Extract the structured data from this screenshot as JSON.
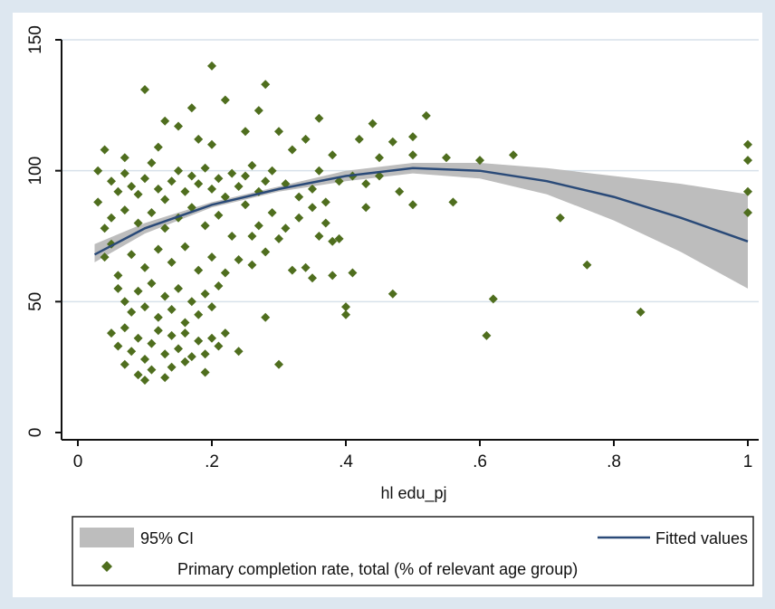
{
  "chart_data": {
    "type": "scatter",
    "xlabel": "hl edu_pj",
    "ylabel": "",
    "xlim": [
      0,
      1
    ],
    "ylim": [
      0,
      150
    ],
    "x_ticks": [
      0,
      0.2,
      0.4,
      0.6,
      0.8,
      1
    ],
    "x_tick_labels": [
      "0",
      ".2",
      ".4",
      ".6",
      ".8",
      "1"
    ],
    "y_ticks": [
      0,
      50,
      100,
      150
    ],
    "y_tick_labels": [
      "0",
      "50",
      "100",
      "150"
    ],
    "grid": true,
    "legend_position": "bottom",
    "legend": {
      "ci_label": "95% CI",
      "fitted_label": "Fitted values",
      "scatter_label": "Primary completion rate, total (% of relevant age group)"
    },
    "colors": {
      "points": "#4f6e1e",
      "fit_line": "#2a4a78",
      "ci_band": "#bdbdbd",
      "background": "#ffffff",
      "outer_frame": "#dde7f0"
    },
    "fitted_line": {
      "x": [
        0.025,
        0.1,
        0.2,
        0.3,
        0.4,
        0.5,
        0.6,
        0.7,
        0.8,
        0.9,
        1.0
      ],
      "y": [
        68,
        78,
        87,
        93,
        98,
        101,
        100,
        96,
        90,
        82,
        73
      ]
    },
    "ci_band": {
      "x": [
        0.025,
        0.1,
        0.2,
        0.3,
        0.4,
        0.5,
        0.6,
        0.7,
        0.8,
        0.9,
        1.0
      ],
      "lower": [
        65,
        76,
        86,
        92,
        96,
        99,
        97,
        91,
        81,
        69,
        55
      ],
      "upper": [
        72,
        80,
        88,
        94,
        100,
        103,
        103,
        101,
        98,
        95,
        91
      ]
    },
    "series": [
      {
        "name": "Primary completion rate, total (% of relevant age group)",
        "points": [
          [
            0.1,
            131
          ],
          [
            0.2,
            140
          ],
          [
            0.22,
            127
          ],
          [
            0.28,
            133
          ],
          [
            0.17,
            124
          ],
          [
            0.27,
            123
          ],
          [
            0.13,
            119
          ],
          [
            0.18,
            112
          ],
          [
            0.52,
            121
          ],
          [
            0.36,
            120
          ],
          [
            0.44,
            118
          ],
          [
            0.42,
            112
          ],
          [
            0.47,
            111
          ],
          [
            0.5,
            113
          ],
          [
            0.25,
            115
          ],
          [
            0.3,
            115
          ],
          [
            0.34,
            112
          ],
          [
            0.15,
            117
          ],
          [
            0.04,
            108
          ],
          [
            0.07,
            105
          ],
          [
            0.12,
            109
          ],
          [
            0.2,
            110
          ],
          [
            0.32,
            108
          ],
          [
            0.38,
            106
          ],
          [
            0.45,
            105
          ],
          [
            0.5,
            106
          ],
          [
            0.55,
            105
          ],
          [
            0.6,
            104
          ],
          [
            0.65,
            106
          ],
          [
            1.0,
            110
          ],
          [
            1.0,
            104
          ],
          [
            1.0,
            92
          ],
          [
            1.0,
            84
          ],
          [
            0.03,
            100
          ],
          [
            0.05,
            96
          ],
          [
            0.06,
            92
          ],
          [
            0.07,
            99
          ],
          [
            0.08,
            94
          ],
          [
            0.09,
            91
          ],
          [
            0.1,
            97
          ],
          [
            0.11,
            103
          ],
          [
            0.12,
            93
          ],
          [
            0.13,
            89
          ],
          [
            0.14,
            96
          ],
          [
            0.15,
            100
          ],
          [
            0.16,
            92
          ],
          [
            0.17,
            98
          ],
          [
            0.18,
            95
          ],
          [
            0.19,
            101
          ],
          [
            0.2,
            93
          ],
          [
            0.21,
            97
          ],
          [
            0.22,
            90
          ],
          [
            0.23,
            99
          ],
          [
            0.24,
            94
          ],
          [
            0.25,
            98
          ],
          [
            0.26,
            102
          ],
          [
            0.27,
            92
          ],
          [
            0.28,
            96
          ],
          [
            0.29,
            100
          ],
          [
            0.31,
            95
          ],
          [
            0.33,
            90
          ],
          [
            0.35,
            93
          ],
          [
            0.36,
            100
          ],
          [
            0.37,
            88
          ],
          [
            0.39,
            96
          ],
          [
            0.41,
            98
          ],
          [
            0.43,
            95
          ],
          [
            0.45,
            98
          ],
          [
            0.48,
            92
          ],
          [
            0.5,
            87
          ],
          [
            0.43,
            86
          ],
          [
            0.56,
            88
          ],
          [
            0.72,
            82
          ],
          [
            0.03,
            88
          ],
          [
            0.04,
            78
          ],
          [
            0.05,
            82
          ],
          [
            0.07,
            85
          ],
          [
            0.09,
            80
          ],
          [
            0.11,
            84
          ],
          [
            0.13,
            78
          ],
          [
            0.15,
            82
          ],
          [
            0.17,
            86
          ],
          [
            0.19,
            79
          ],
          [
            0.21,
            83
          ],
          [
            0.23,
            75
          ],
          [
            0.25,
            87
          ],
          [
            0.27,
            79
          ],
          [
            0.29,
            84
          ],
          [
            0.31,
            78
          ],
          [
            0.33,
            82
          ],
          [
            0.35,
            86
          ],
          [
            0.37,
            80
          ],
          [
            0.39,
            74
          ],
          [
            0.3,
            74
          ],
          [
            0.26,
            75
          ],
          [
            0.34,
            63
          ],
          [
            0.36,
            75
          ],
          [
            0.38,
            73
          ],
          [
            0.32,
            62
          ],
          [
            0.35,
            59
          ],
          [
            0.38,
            60
          ],
          [
            0.41,
            61
          ],
          [
            0.04,
            67
          ],
          [
            0.05,
            72
          ],
          [
            0.06,
            60
          ],
          [
            0.08,
            68
          ],
          [
            0.1,
            63
          ],
          [
            0.12,
            70
          ],
          [
            0.14,
            65
          ],
          [
            0.16,
            71
          ],
          [
            0.18,
            62
          ],
          [
            0.2,
            67
          ],
          [
            0.22,
            61
          ],
          [
            0.24,
            66
          ],
          [
            0.26,
            64
          ],
          [
            0.28,
            69
          ],
          [
            0.76,
            64
          ],
          [
            0.06,
            55
          ],
          [
            0.07,
            50
          ],
          [
            0.08,
            46
          ],
          [
            0.09,
            54
          ],
          [
            0.1,
            48
          ],
          [
            0.11,
            57
          ],
          [
            0.12,
            44
          ],
          [
            0.13,
            52
          ],
          [
            0.14,
            47
          ],
          [
            0.15,
            55
          ],
          [
            0.16,
            42
          ],
          [
            0.17,
            50
          ],
          [
            0.18,
            45
          ],
          [
            0.19,
            53
          ],
          [
            0.2,
            48
          ],
          [
            0.21,
            56
          ],
          [
            0.47,
            53
          ],
          [
            0.62,
            51
          ],
          [
            0.4,
            48
          ],
          [
            0.4,
            45
          ],
          [
            0.28,
            44
          ],
          [
            0.84,
            46
          ],
          [
            0.05,
            38
          ],
          [
            0.06,
            33
          ],
          [
            0.07,
            40
          ],
          [
            0.08,
            31
          ],
          [
            0.09,
            36
          ],
          [
            0.1,
            28
          ],
          [
            0.11,
            34
          ],
          [
            0.12,
            39
          ],
          [
            0.13,
            30
          ],
          [
            0.14,
            37
          ],
          [
            0.15,
            32
          ],
          [
            0.16,
            38
          ],
          [
            0.17,
            29
          ],
          [
            0.18,
            35
          ],
          [
            0.19,
            30
          ],
          [
            0.2,
            36
          ],
          [
            0.21,
            33
          ],
          [
            0.24,
            31
          ],
          [
            0.22,
            38
          ],
          [
            0.61,
            37
          ],
          [
            0.09,
            22
          ],
          [
            0.1,
            20
          ],
          [
            0.13,
            21
          ],
          [
            0.14,
            25
          ],
          [
            0.19,
            23
          ],
          [
            0.3,
            26
          ],
          [
            0.07,
            26
          ],
          [
            0.11,
            24
          ],
          [
            0.16,
            27
          ]
        ]
      }
    ]
  }
}
